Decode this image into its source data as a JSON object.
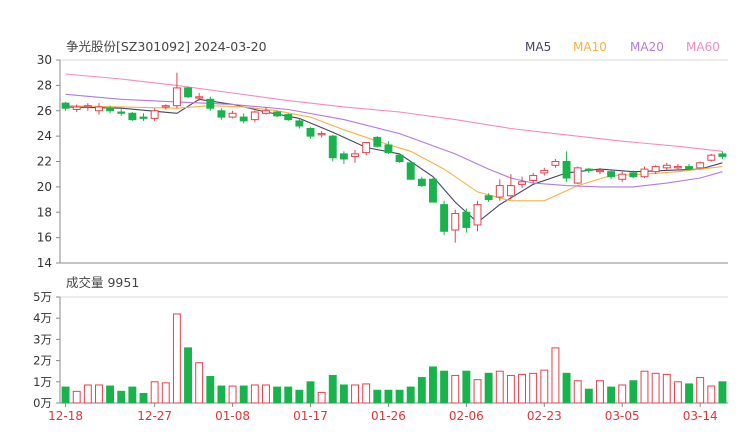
{
  "header": {
    "title": "争光股份[SZ301092] 2024-03-20",
    "legend": [
      {
        "label": "MA5",
        "color": "#444466"
      },
      {
        "label": "MA10",
        "color": "#f5b342"
      },
      {
        "label": "MA20",
        "color": "#b27be0"
      },
      {
        "label": "MA60",
        "color": "#f28cc0"
      }
    ]
  },
  "volume_title": "成交量 9951",
  "colors": {
    "up": "#e8414d",
    "down": "#19b34b",
    "axis": "#888888",
    "date_label": "#e0353a"
  },
  "chart_data": [
    {
      "type": "candlestick",
      "ylim": [
        14,
        30
      ],
      "yticks": [
        14,
        16,
        18,
        20,
        22,
        24,
        26,
        28,
        30
      ],
      "candles": [
        {
          "o": 26.2,
          "h": 26.7,
          "l": 26.0,
          "c": 26.6,
          "up": false
        },
        {
          "o": 26.1,
          "h": 26.5,
          "l": 25.9,
          "c": 26.3,
          "up": true
        },
        {
          "o": 26.3,
          "h": 26.6,
          "l": 26.0,
          "c": 26.4,
          "up": true
        },
        {
          "o": 26.3,
          "h": 26.6,
          "l": 25.7,
          "c": 26.0,
          "up": true
        },
        {
          "o": 26.2,
          "h": 26.4,
          "l": 25.8,
          "c": 26.0,
          "up": false
        },
        {
          "o": 25.8,
          "h": 26.2,
          "l": 25.6,
          "c": 25.9,
          "up": false
        },
        {
          "o": 25.8,
          "h": 25.9,
          "l": 25.2,
          "c": 25.3,
          "up": false
        },
        {
          "o": 25.5,
          "h": 25.8,
          "l": 25.2,
          "c": 25.4,
          "up": false
        },
        {
          "o": 25.4,
          "h": 26.2,
          "l": 25.2,
          "c": 26.0,
          "up": true
        },
        {
          "o": 26.3,
          "h": 26.5,
          "l": 26.1,
          "c": 26.4,
          "up": true
        },
        {
          "o": 26.4,
          "h": 29.0,
          "l": 26.2,
          "c": 27.8,
          "up": true
        },
        {
          "o": 27.8,
          "h": 27.9,
          "l": 27.0,
          "c": 27.1,
          "up": false
        },
        {
          "o": 27.0,
          "h": 27.4,
          "l": 26.8,
          "c": 27.1,
          "up": true
        },
        {
          "o": 26.9,
          "h": 27.1,
          "l": 26.0,
          "c": 26.2,
          "up": false
        },
        {
          "o": 26.0,
          "h": 26.2,
          "l": 25.3,
          "c": 25.5,
          "up": false
        },
        {
          "o": 25.8,
          "h": 26.0,
          "l": 25.4,
          "c": 25.5,
          "up": true
        },
        {
          "o": 25.5,
          "h": 25.8,
          "l": 25.0,
          "c": 25.2,
          "up": false
        },
        {
          "o": 25.3,
          "h": 26.0,
          "l": 25.1,
          "c": 25.9,
          "up": true
        },
        {
          "o": 25.8,
          "h": 26.3,
          "l": 25.7,
          "c": 26.0,
          "up": true
        },
        {
          "o": 25.9,
          "h": 26.0,
          "l": 25.5,
          "c": 25.6,
          "up": false
        },
        {
          "o": 25.7,
          "h": 25.8,
          "l": 25.2,
          "c": 25.3,
          "up": false
        },
        {
          "o": 25.2,
          "h": 25.4,
          "l": 24.6,
          "c": 24.8,
          "up": false
        },
        {
          "o": 24.6,
          "h": 24.7,
          "l": 23.8,
          "c": 24.0,
          "up": false
        },
        {
          "o": 24.1,
          "h": 24.4,
          "l": 23.9,
          "c": 24.2,
          "up": true
        },
        {
          "o": 24.0,
          "h": 24.1,
          "l": 22.0,
          "c": 22.3,
          "up": false
        },
        {
          "o": 22.6,
          "h": 22.8,
          "l": 21.8,
          "c": 22.2,
          "up": false
        },
        {
          "o": 22.4,
          "h": 22.9,
          "l": 21.9,
          "c": 22.6,
          "up": true
        },
        {
          "o": 22.7,
          "h": 23.4,
          "l": 22.5,
          "c": 23.5,
          "up": true
        },
        {
          "o": 23.9,
          "h": 24.0,
          "l": 23.1,
          "c": 23.2,
          "up": false
        },
        {
          "o": 23.3,
          "h": 23.6,
          "l": 22.6,
          "c": 22.7,
          "up": false
        },
        {
          "o": 22.5,
          "h": 22.6,
          "l": 21.9,
          "c": 22.0,
          "up": false
        },
        {
          "o": 21.9,
          "h": 21.9,
          "l": 20.6,
          "c": 20.6,
          "up": false
        },
        {
          "o": 20.6,
          "h": 20.8,
          "l": 20.0,
          "c": 20.1,
          "up": false
        },
        {
          "o": 20.6,
          "h": 20.7,
          "l": 18.8,
          "c": 18.8,
          "up": false
        },
        {
          "o": 18.6,
          "h": 18.9,
          "l": 16.2,
          "c": 16.5,
          "up": false
        },
        {
          "o": 16.6,
          "h": 18.2,
          "l": 15.6,
          "c": 17.9,
          "up": true
        },
        {
          "o": 18.0,
          "h": 18.3,
          "l": 16.4,
          "c": 16.8,
          "up": false
        },
        {
          "o": 17.0,
          "h": 18.9,
          "l": 16.5,
          "c": 18.6,
          "up": true
        },
        {
          "o": 19.0,
          "h": 19.5,
          "l": 18.8,
          "c": 19.3,
          "up": false
        },
        {
          "o": 19.2,
          "h": 20.6,
          "l": 18.9,
          "c": 20.1,
          "up": true
        },
        {
          "o": 19.3,
          "h": 21.0,
          "l": 19.0,
          "c": 20.1,
          "up": true
        },
        {
          "o": 20.4,
          "h": 20.8,
          "l": 19.9,
          "c": 20.2,
          "up": true
        },
        {
          "o": 20.5,
          "h": 21.1,
          "l": 20.3,
          "c": 20.9,
          "up": true
        },
        {
          "o": 21.1,
          "h": 21.5,
          "l": 20.9,
          "c": 21.3,
          "up": true
        },
        {
          "o": 21.7,
          "h": 22.2,
          "l": 21.5,
          "c": 22.0,
          "up": true
        },
        {
          "o": 22.0,
          "h": 22.8,
          "l": 20.4,
          "c": 20.7,
          "up": false
        },
        {
          "o": 20.3,
          "h": 21.6,
          "l": 20.2,
          "c": 21.5,
          "up": true
        },
        {
          "o": 21.3,
          "h": 21.5,
          "l": 21.1,
          "c": 21.4,
          "up": false
        },
        {
          "o": 21.3,
          "h": 21.5,
          "l": 21.0,
          "c": 21.2,
          "up": true
        },
        {
          "o": 21.2,
          "h": 21.4,
          "l": 20.6,
          "c": 20.8,
          "up": false
        },
        {
          "o": 20.6,
          "h": 21.2,
          "l": 20.4,
          "c": 21.0,
          "up": true
        },
        {
          "o": 21.1,
          "h": 21.3,
          "l": 20.7,
          "c": 20.8,
          "up": false
        },
        {
          "o": 20.8,
          "h": 21.6,
          "l": 20.7,
          "c": 21.4,
          "up": true
        },
        {
          "o": 21.2,
          "h": 21.7,
          "l": 21.0,
          "c": 21.6,
          "up": true
        },
        {
          "o": 21.5,
          "h": 21.9,
          "l": 21.3,
          "c": 21.7,
          "up": true
        },
        {
          "o": 21.6,
          "h": 21.8,
          "l": 21.3,
          "c": 21.5,
          "up": true
        },
        {
          "o": 21.6,
          "h": 21.8,
          "l": 21.3,
          "c": 21.4,
          "up": false
        },
        {
          "o": 21.5,
          "h": 22.0,
          "l": 21.4,
          "c": 21.9,
          "up": true
        },
        {
          "o": 22.1,
          "h": 22.6,
          "l": 22.0,
          "c": 22.5,
          "up": true
        },
        {
          "o": 22.4,
          "h": 22.8,
          "l": 22.2,
          "c": 22.6,
          "up": false
        }
      ],
      "ma": {
        "MA5": {
          "x": [
            0,
            5,
            10,
            12,
            15,
            18,
            21,
            24,
            27,
            30,
            33,
            35,
            37,
            39,
            42,
            45,
            48,
            51,
            54,
            57,
            59
          ],
          "y": [
            26.3,
            26.2,
            25.8,
            26.9,
            26.5,
            25.9,
            25.4,
            24.3,
            23.1,
            22.6,
            20.8,
            18.8,
            17.2,
            18.6,
            20.2,
            21.1,
            21.4,
            21.2,
            21.3,
            21.4,
            21.9
          ]
        },
        "MA10": {
          "x": [
            0,
            5,
            10,
            13,
            16,
            19,
            22,
            25,
            28,
            31,
            34,
            37,
            40,
            43,
            46,
            49,
            52,
            55,
            59
          ],
          "y": [
            26.4,
            26.3,
            26.2,
            26.4,
            26.3,
            26.0,
            25.5,
            24.5,
            23.6,
            22.8,
            21.4,
            19.6,
            18.9,
            18.9,
            20.1,
            20.9,
            21.0,
            21.2,
            21.6
          ]
        },
        "MA20": {
          "x": [
            0,
            5,
            10,
            15,
            20,
            25,
            30,
            35,
            38,
            40,
            42,
            45,
            48,
            51,
            54,
            57,
            59
          ],
          "y": [
            27.3,
            26.9,
            26.7,
            26.5,
            26.1,
            25.3,
            24.2,
            22.6,
            21.4,
            20.7,
            20.3,
            20.1,
            20.0,
            20.0,
            20.3,
            20.7,
            21.2
          ]
        },
        "MA60": {
          "x": [
            0,
            5,
            10,
            15,
            20,
            25,
            30,
            35,
            40,
            45,
            50,
            55,
            59
          ],
          "y": [
            28.9,
            28.5,
            28.0,
            27.4,
            26.8,
            26.3,
            25.9,
            25.3,
            24.6,
            24.1,
            23.6,
            23.2,
            22.8
          ]
        }
      }
    },
    {
      "type": "bar",
      "title": "成交量 9951",
      "ylim": [
        0,
        5
      ],
      "yticks": [
        "0万",
        "1万",
        "2万",
        "3万",
        "4万",
        "5万"
      ],
      "ytick_values": [
        0,
        1,
        2,
        3,
        4,
        5
      ],
      "xticks": [
        "12-18",
        "12-27",
        "01-08",
        "01-17",
        "01-26",
        "02-06",
        "02-23",
        "03-05",
        "03-14"
      ],
      "xtick_indices": [
        0,
        8,
        15,
        22,
        29,
        36,
        43,
        50,
        57
      ],
      "values": [
        0.75,
        0.55,
        0.85,
        0.85,
        0.8,
        0.55,
        0.75,
        0.45,
        1.0,
        0.95,
        4.2,
        2.6,
        1.9,
        1.25,
        0.8,
        0.8,
        0.8,
        0.85,
        0.85,
        0.75,
        0.75,
        0.6,
        1.0,
        0.5,
        1.3,
        0.85,
        0.85,
        0.9,
        0.6,
        0.6,
        0.6,
        0.75,
        1.2,
        1.7,
        1.5,
        1.3,
        1.5,
        1.1,
        1.4,
        1.5,
        1.3,
        1.35,
        1.4,
        1.55,
        2.6,
        1.4,
        1.05,
        0.65,
        1.05,
        0.75,
        0.85,
        1.05,
        1.5,
        1.4,
        1.35,
        1.0,
        0.9,
        1.2,
        0.8,
        1.0
      ]
    }
  ]
}
